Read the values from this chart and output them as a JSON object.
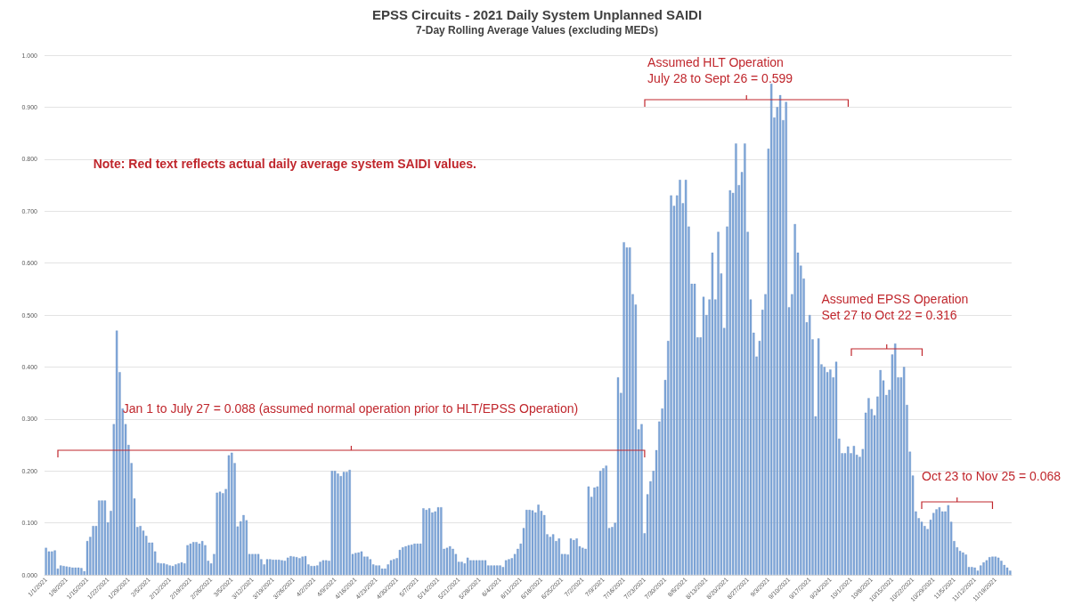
{
  "chart_data": {
    "type": "bar",
    "title": "EPSS Circuits - 2021 Daily System Unplanned SAIDI",
    "subtitle": "7-Day Rolling Average Values (excluding MEDs)",
    "categories": [
      "1/1/2021",
      null,
      null,
      null,
      null,
      null,
      null,
      "1/8/2021",
      null,
      null,
      null,
      null,
      null,
      null,
      "1/15/2021",
      null,
      null,
      null,
      null,
      null,
      null,
      "1/22/2021",
      null,
      null,
      null,
      null,
      null,
      null,
      "1/29/2021",
      null,
      null,
      null,
      null,
      null,
      null,
      "2/5/2021",
      null,
      null,
      null,
      null,
      null,
      null,
      "2/12/2021",
      null,
      null,
      null,
      null,
      null,
      null,
      "2/19/2021",
      null,
      null,
      null,
      null,
      null,
      null,
      "2/26/2021",
      null,
      null,
      null,
      null,
      null,
      null,
      "3/5/2021",
      null,
      null,
      null,
      null,
      null,
      null,
      "3/12/2021",
      null,
      null,
      null,
      null,
      null,
      null,
      "3/19/2021",
      null,
      null,
      null,
      null,
      null,
      null,
      "3/26/2021",
      null,
      null,
      null,
      null,
      null,
      null,
      "4/2/2021",
      null,
      null,
      null,
      null,
      null,
      null,
      "4/9/2021",
      null,
      null,
      null,
      null,
      null,
      null,
      "4/16/2021",
      null,
      null,
      null,
      null,
      null,
      null,
      "4/23/2021",
      null,
      null,
      null,
      null,
      null,
      null,
      "4/30/2021",
      null,
      null,
      null,
      null,
      null,
      null,
      "5/7/2021",
      null,
      null,
      null,
      null,
      null,
      null,
      "5/14/2021",
      null,
      null,
      null,
      null,
      null,
      null,
      "5/21/2021",
      null,
      null,
      null,
      null,
      null,
      null,
      "5/28/2021",
      null,
      null,
      null,
      null,
      null,
      null,
      "6/4/2021",
      null,
      null,
      null,
      null,
      null,
      null,
      "6/11/2021",
      null,
      null,
      null,
      null,
      null,
      null,
      "6/18/2021",
      null,
      null,
      null,
      null,
      null,
      null,
      "6/25/2021",
      null,
      null,
      null,
      null,
      null,
      null,
      "7/2/2021",
      null,
      null,
      null,
      null,
      null,
      null,
      "7/9/2021",
      null,
      null,
      null,
      null,
      null,
      null,
      "7/16/2021",
      null,
      null,
      null,
      null,
      null,
      null,
      "7/23/2021",
      null,
      null,
      null,
      null,
      null,
      null,
      "7/30/2021",
      null,
      null,
      null,
      null,
      null,
      null,
      "8/6/2021",
      null,
      null,
      null,
      null,
      null,
      null,
      "8/13/2021",
      null,
      null,
      null,
      null,
      null,
      null,
      "8/20/2021",
      null,
      null,
      null,
      null,
      null,
      null,
      "8/27/2021",
      null,
      null,
      null,
      null,
      null,
      null,
      "9/3/2021",
      null,
      null,
      null,
      null,
      null,
      null,
      "9/10/2021",
      null,
      null,
      null,
      null,
      null,
      null,
      "9/17/2021",
      null,
      null,
      null,
      null,
      null,
      null,
      "9/24/2021",
      null,
      null,
      null,
      null,
      null,
      null,
      "10/1/2021",
      null,
      null,
      null,
      null,
      null,
      null,
      "10/8/2021",
      null,
      null,
      null,
      null,
      null,
      null,
      "10/15/2021",
      null,
      null,
      null,
      null,
      null,
      null,
      "10/22/2021",
      null,
      null,
      null,
      null,
      null,
      null,
      "10/29/2021",
      null,
      null,
      null,
      null,
      null,
      null,
      "11/5/2021",
      null,
      null,
      null,
      null,
      null,
      null,
      "11/12/2021",
      null,
      null,
      null,
      null,
      null,
      null,
      "11/19/2021",
      null,
      null,
      null,
      null,
      null
    ],
    "values": [
      0.052,
      0.045,
      0.045,
      0.047,
      0.012,
      0.018,
      0.017,
      0.016,
      0.015,
      0.014,
      0.014,
      0.014,
      0.013,
      0.007,
      0.065,
      0.073,
      0.094,
      0.094,
      0.143,
      0.143,
      0.143,
      0.101,
      0.123,
      0.29,
      0.47,
      0.39,
      0.32,
      0.29,
      0.25,
      0.215,
      0.147,
      0.092,
      0.094,
      0.085,
      0.075,
      0.062,
      0.062,
      0.045,
      0.023,
      0.022,
      0.022,
      0.02,
      0.018,
      0.017,
      0.02,
      0.022,
      0.024,
      0.022,
      0.057,
      0.06,
      0.063,
      0.063,
      0.06,
      0.065,
      0.057,
      0.027,
      0.022,
      0.04,
      0.158,
      0.16,
      0.157,
      0.165,
      0.23,
      0.235,
      0.215,
      0.093,
      0.103,
      0.115,
      0.105,
      0.04,
      0.04,
      0.04,
      0.04,
      0.03,
      0.02,
      0.03,
      0.03,
      0.029,
      0.029,
      0.029,
      0.028,
      0.027,
      0.033,
      0.036,
      0.035,
      0.034,
      0.032,
      0.035,
      0.036,
      0.02,
      0.017,
      0.017,
      0.018,
      0.025,
      0.028,
      0.028,
      0.027,
      0.2,
      0.2,
      0.195,
      0.19,
      0.198,
      0.198,
      0.202,
      0.04,
      0.042,
      0.043,
      0.045,
      0.035,
      0.035,
      0.03,
      0.02,
      0.018,
      0.018,
      0.012,
      0.012,
      0.02,
      0.028,
      0.03,
      0.032,
      0.048,
      0.053,
      0.055,
      0.057,
      0.058,
      0.06,
      0.06,
      0.06,
      0.128,
      0.125,
      0.128,
      0.12,
      0.122,
      0.13,
      0.13,
      0.05,
      0.052,
      0.055,
      0.05,
      0.04,
      0.025,
      0.025,
      0.022,
      0.033,
      0.028,
      0.028,
      0.028,
      0.028,
      0.028,
      0.028,
      0.018,
      0.018,
      0.018,
      0.018,
      0.018,
      0.015,
      0.028,
      0.03,
      0.032,
      0.04,
      0.05,
      0.06,
      0.09,
      0.125,
      0.125,
      0.124,
      0.12,
      0.135,
      0.123,
      0.115,
      0.078,
      0.073,
      0.078,
      0.065,
      0.07,
      0.04,
      0.04,
      0.039,
      0.07,
      0.067,
      0.07,
      0.055,
      0.052,
      0.05,
      0.17,
      0.15,
      0.168,
      0.17,
      0.2,
      0.205,
      0.21,
      0.09,
      0.092,
      0.1,
      0.38,
      0.35,
      0.64,
      0.63,
      0.63,
      0.54,
      0.52,
      0.28,
      0.29,
      0.08,
      0.155,
      0.18,
      0.2,
      0.24,
      0.295,
      0.32,
      0.375,
      0.45,
      0.73,
      0.71,
      0.73,
      0.76,
      0.715,
      0.76,
      0.67,
      0.56,
      0.56,
      0.457,
      0.457,
      0.535,
      0.5,
      0.53,
      0.62,
      0.53,
      0.66,
      0.58,
      0.475,
      0.67,
      0.74,
      0.735,
      0.83,
      0.75,
      0.775,
      0.83,
      0.66,
      0.53,
      0.466,
      0.42,
      0.45,
      0.51,
      0.54,
      0.82,
      0.945,
      0.88,
      0.9,
      0.923,
      0.875,
      0.91,
      0.515,
      0.54,
      0.675,
      0.62,
      0.595,
      0.57,
      0.486,
      0.5,
      0.453,
      0.305,
      0.455,
      0.405,
      0.4,
      0.39,
      0.395,
      0.38,
      0.41,
      0.262,
      0.234,
      0.234,
      0.247,
      0.234,
      0.248,
      0.231,
      0.227,
      0.242,
      0.312,
      0.34,
      0.319,
      0.307,
      0.343,
      0.394,
      0.374,
      0.346,
      0.356,
      0.424,
      0.445,
      0.38,
      0.38,
      0.4,
      0.327,
      0.237,
      0.191,
      0.122,
      0.109,
      0.102,
      0.094,
      0.088,
      0.106,
      0.119,
      0.126,
      0.13,
      0.122,
      0.122,
      0.134,
      0.102,
      0.065,
      0.053,
      0.046,
      0.043,
      0.039,
      0.015,
      0.015,
      0.014,
      0.008,
      0.018,
      0.024,
      0.028,
      0.034,
      0.035,
      0.035,
      0.033,
      0.027,
      0.019,
      0.014,
      0.008
    ],
    "color": "#7ea6d8",
    "ylim": [
      0,
      1
    ],
    "yticks": [
      {
        "value": 0,
        "label": "0.000"
      },
      {
        "value": 0.1,
        "label": "0.100"
      },
      {
        "value": 0.2,
        "label": "0.200"
      },
      {
        "value": 0.3,
        "label": "0.300"
      },
      {
        "value": 0.4,
        "label": "0.400"
      },
      {
        "value": 0.5,
        "label": "0.500"
      },
      {
        "value": 0.6,
        "label": "0.600"
      },
      {
        "value": 0.7,
        "label": "0.700"
      },
      {
        "value": 0.8,
        "label": "0.800"
      },
      {
        "value": 0.9,
        "label": "0.900"
      },
      {
        "value": 1,
        "label": "1.000"
      }
    ],
    "grid": "y",
    "annotations": [
      "Note: Red text reflects actual daily average system SAIDI values.",
      "Assumed HLT Operation\nJuly 28 to Sept 26 = 0.599",
      "Assumed EPSS Operation\nSet 27 to Oct 22 = 0.316",
      "Jan 1 to July 27 = 0.088 (assumed normal operation prior to HLT/EPSS Operation)",
      "Oct 23 to Nov 25 = 0.068"
    ]
  }
}
